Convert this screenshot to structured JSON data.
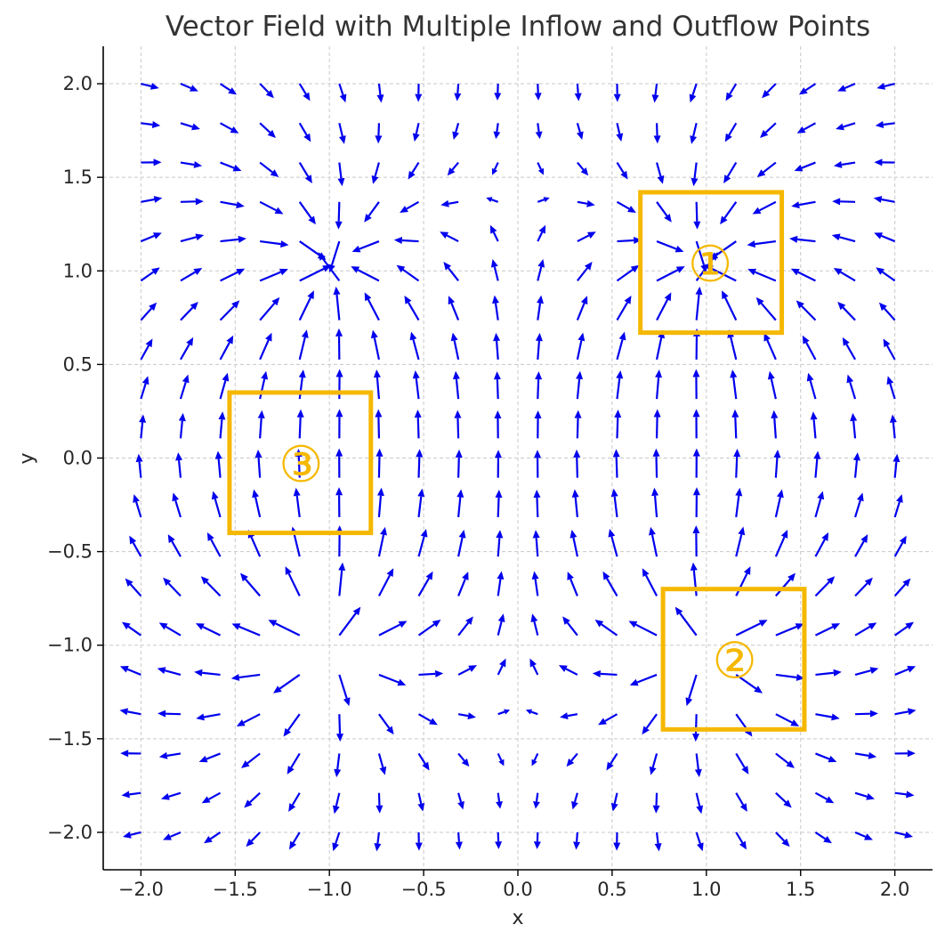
{
  "chart_data": {
    "type": "quiver",
    "title": "Vector Field with Multiple Inflow and Outflow Points",
    "xlabel": "x",
    "ylabel": "y",
    "xlim": [
      -2.2,
      2.2
    ],
    "ylim": [
      -2.2,
      2.2
    ],
    "xticks": [
      -2.0,
      -1.5,
      -1.0,
      -0.5,
      0.0,
      0.5,
      1.0,
      1.5,
      2.0
    ],
    "yticks": [
      -2.0,
      -1.5,
      -1.0,
      -0.5,
      0.0,
      0.5,
      1.0,
      1.5,
      2.0
    ],
    "xtick_labels": [
      "−2.0",
      "−1.5",
      "−1.0",
      "−0.5",
      "0.0",
      "0.5",
      "1.0",
      "1.5",
      "2.0"
    ],
    "ytick_labels": [
      "−2.0",
      "−1.5",
      "−1.0",
      "−0.5",
      "0.0",
      "0.5",
      "1.0",
      "1.5",
      "2.0"
    ],
    "grid": true,
    "grid_range": [
      -2.0,
      2.0
    ],
    "grid_points": 20,
    "arrow_color": "#0000ee",
    "sources": [
      {
        "x": 1.0,
        "y": -1.0,
        "strength": 1
      },
      {
        "x": -1.0,
        "y": -1.0,
        "strength": 1
      }
    ],
    "sinks": [
      {
        "x": 1.0,
        "y": 1.0,
        "strength": 1
      },
      {
        "x": -1.0,
        "y": 1.0,
        "strength": 1
      }
    ],
    "annotations": [
      {
        "label": "①",
        "x_range": [
          0.65,
          1.4
        ],
        "y_range": [
          0.67,
          1.42
        ],
        "center": [
          1.02,
          1.04
        ]
      },
      {
        "label": "②",
        "x_range": [
          0.77,
          1.52
        ],
        "y_range": [
          -1.45,
          -0.7
        ],
        "center": [
          1.15,
          -1.08
        ]
      },
      {
        "label": "③",
        "x_range": [
          -1.53,
          -0.78
        ],
        "y_range": [
          -0.4,
          0.35
        ],
        "center": [
          -1.15,
          -0.03
        ]
      }
    ],
    "annotation_color": "#f5b800"
  }
}
